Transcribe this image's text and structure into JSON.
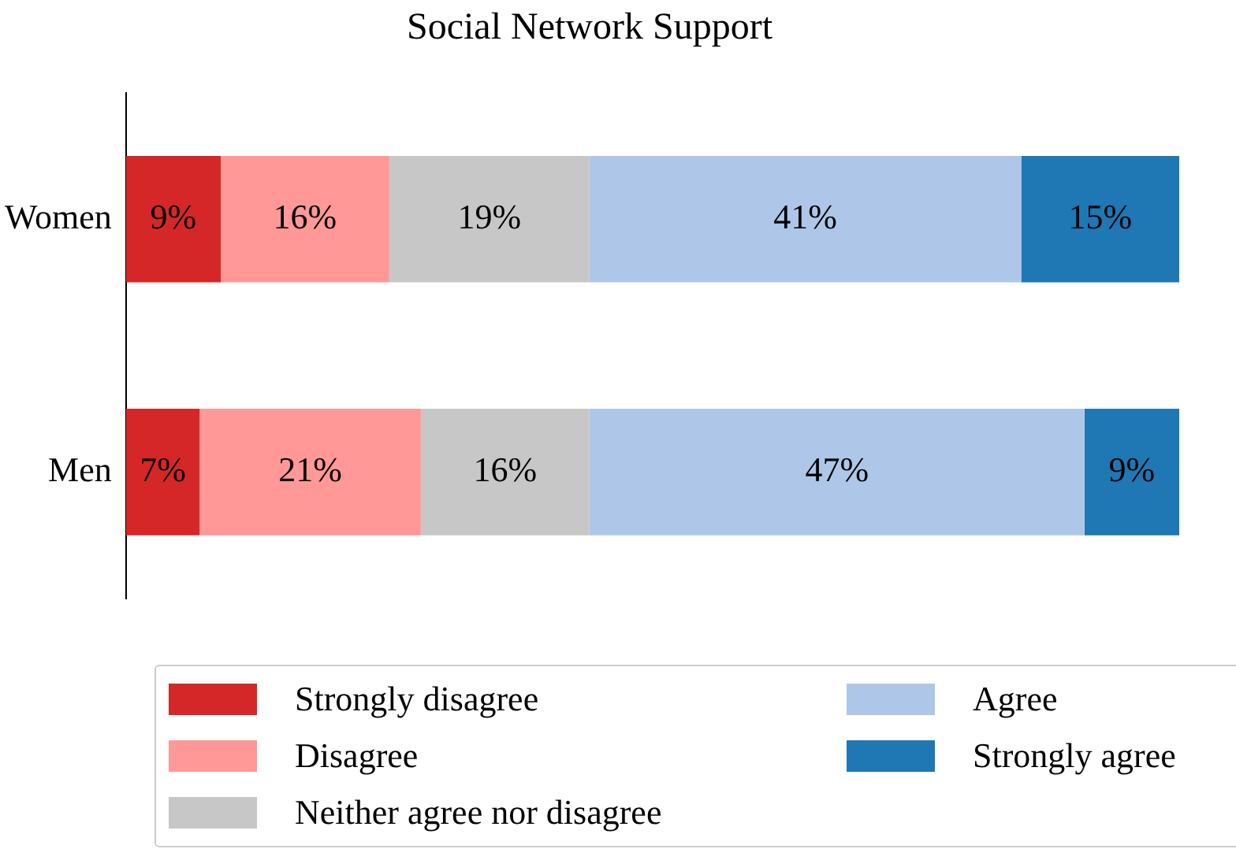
{
  "chart_data": {
    "type": "bar",
    "title": "Social Network Support",
    "orientation": "horizontal",
    "stacked": true,
    "categories": [
      "Women",
      "Men"
    ],
    "tick_labels": "y",
    "legend": "bottom",
    "series": [
      {
        "name": "Strongly disagree",
        "color": "#d62728",
        "values": [
          9,
          7
        ],
        "value_labels": [
          "9%",
          "7%"
        ]
      },
      {
        "name": "Disagree",
        "color": "#ff9896",
        "values": [
          16,
          21
        ],
        "value_labels": [
          "16%",
          "21%"
        ]
      },
      {
        "name": "Neither agree nor disagree",
        "color": "#c7c7c7",
        "values": [
          19,
          16
        ],
        "value_labels": [
          "19%",
          "16%"
        ]
      },
      {
        "name": "Agree",
        "color": "#aec7e8",
        "values": [
          41,
          47
        ],
        "value_labels": [
          "41%",
          "47%"
        ]
      },
      {
        "name": "Strongly agree",
        "color": "#1f77b4",
        "values": [
          15,
          9
        ],
        "value_labels": [
          "15%",
          "9%"
        ]
      }
    ]
  }
}
